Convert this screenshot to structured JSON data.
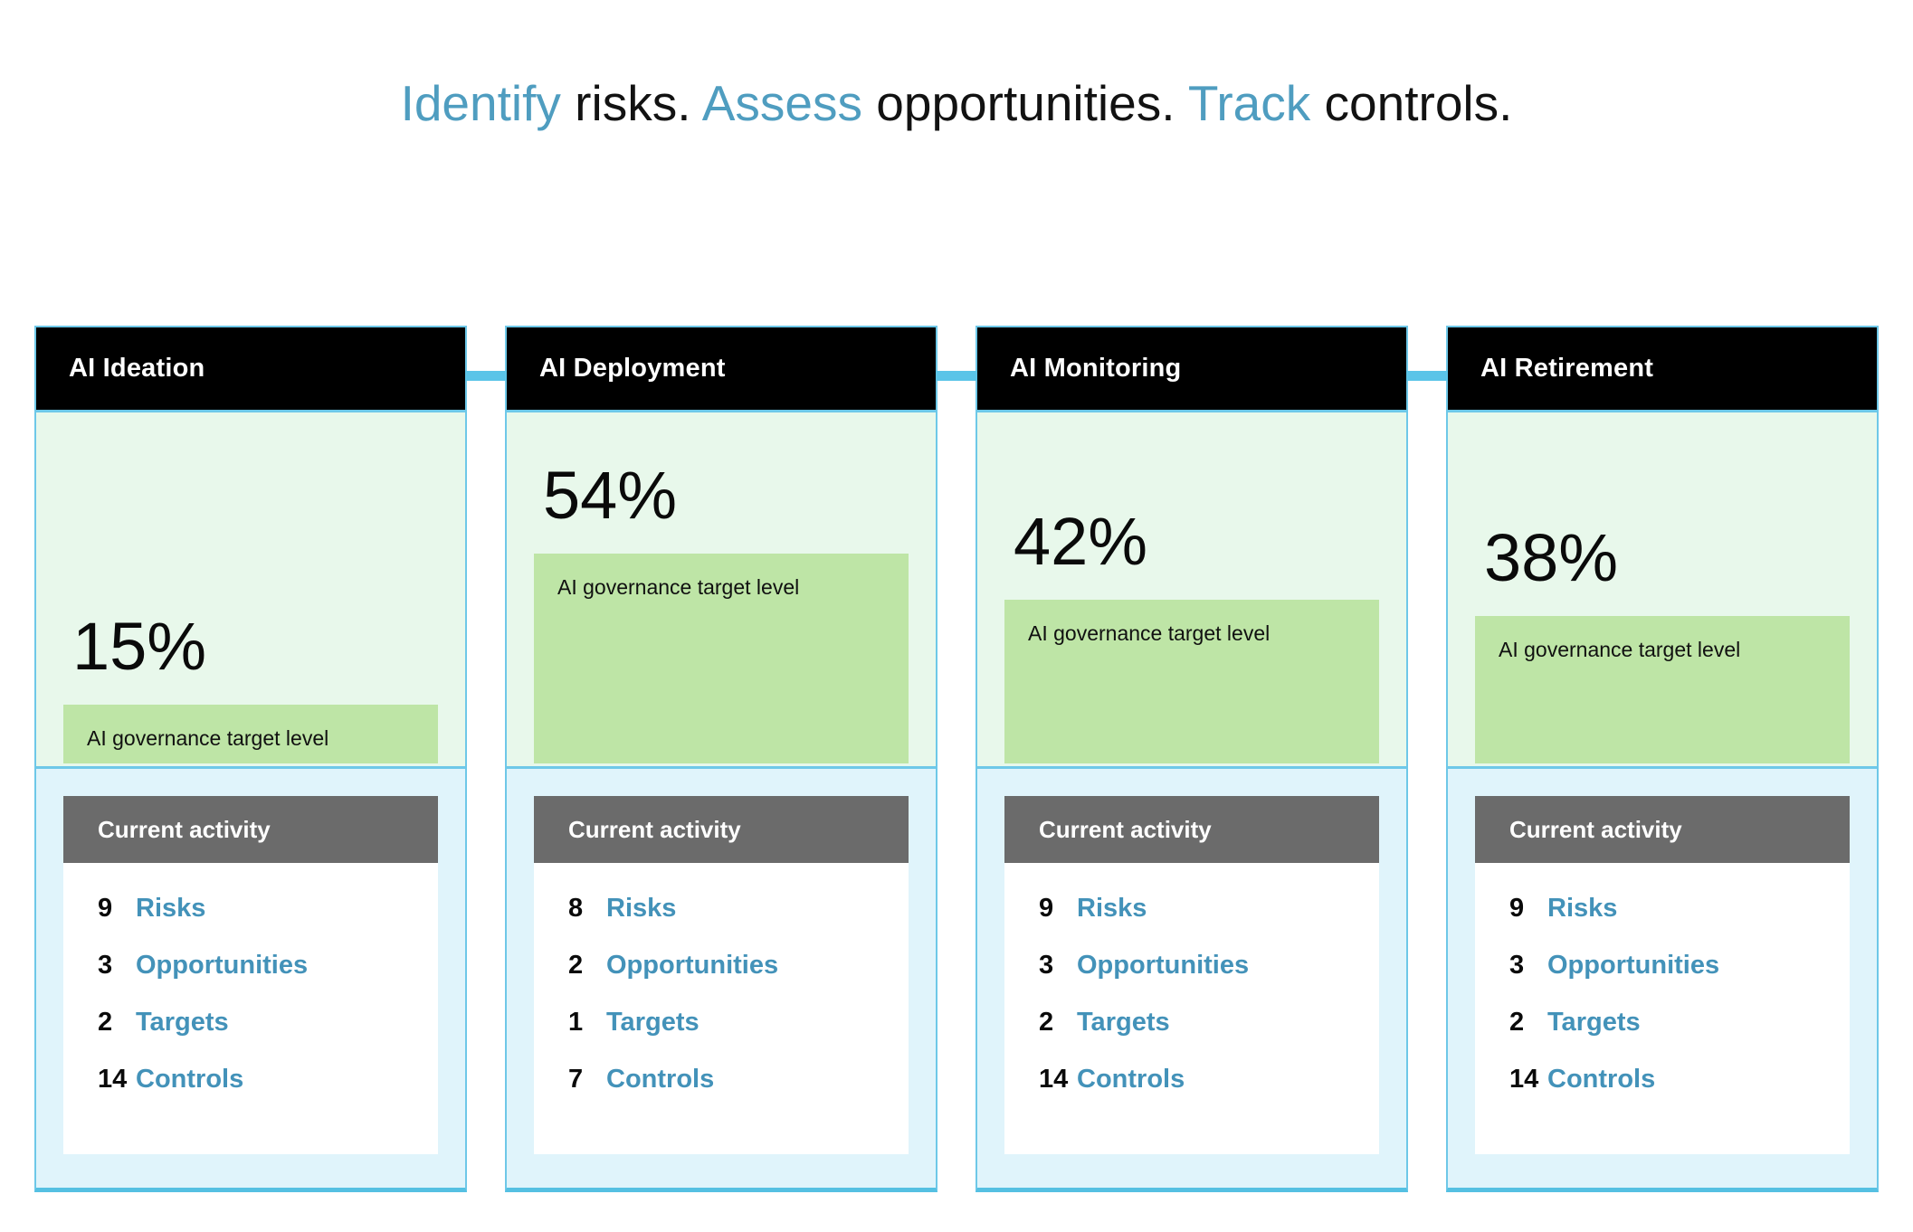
{
  "title": {
    "segments": [
      {
        "text": "Identify",
        "accent": true
      },
      {
        "text": " risks. ",
        "accent": false
      },
      {
        "text": "Assess",
        "accent": true
      },
      {
        "text": " opportunities. ",
        "accent": false
      },
      {
        "text": "Track",
        "accent": true
      },
      {
        "text": " controls.",
        "accent": false
      }
    ]
  },
  "colors": {
    "accent_teal": "#4f9dc0",
    "link_teal": "#4392b9",
    "card_border": "#6ec8e8",
    "card_border_bottom": "#55c0e2",
    "connector": "#5ac4e8",
    "stage_header_bg": "#000000",
    "target_section_bg": "#e8f8eb",
    "target_bar_green": "#bee5a6",
    "activity_section_bg": "#e0f4fb",
    "activity_header_bg": "#6b6b6b"
  },
  "cards": [
    {
      "stage": "AI Ideation",
      "target_percent": 15,
      "target_percent_label": "15%",
      "target_bar_label": "AI governance target level",
      "activity_header": "Current activity",
      "stats": [
        {
          "count": "9",
          "label": "Risks"
        },
        {
          "count": "3",
          "label": "Opportunities"
        },
        {
          "count": "2",
          "label": "Targets"
        },
        {
          "count": "14",
          "label": "Controls"
        }
      ]
    },
    {
      "stage": "AI Deployment",
      "target_percent": 54,
      "target_percent_label": "54%",
      "target_bar_label": "AI governance target level",
      "activity_header": "Current activity",
      "stats": [
        {
          "count": "8",
          "label": "Risks"
        },
        {
          "count": "2",
          "label": "Opportunities"
        },
        {
          "count": "1",
          "label": "Targets"
        },
        {
          "count": "7",
          "label": "Controls"
        }
      ]
    },
    {
      "stage": "AI Monitoring",
      "target_percent": 42,
      "target_percent_label": "42%",
      "target_bar_label": "AI governance target level",
      "activity_header": "Current activity",
      "stats": [
        {
          "count": "9",
          "label": "Risks"
        },
        {
          "count": "3",
          "label": "Opportunities"
        },
        {
          "count": "2",
          "label": "Targets"
        },
        {
          "count": "14",
          "label": "Controls"
        }
      ]
    },
    {
      "stage": "AI Retirement",
      "target_percent": 38,
      "target_percent_label": "38%",
      "target_bar_label": "AI governance target level",
      "activity_header": "Current activity",
      "stats": [
        {
          "count": "9",
          "label": "Risks"
        },
        {
          "count": "3",
          "label": "Opportunities"
        },
        {
          "count": "2",
          "label": "Targets"
        },
        {
          "count": "14",
          "label": "Controls"
        }
      ]
    }
  ]
}
